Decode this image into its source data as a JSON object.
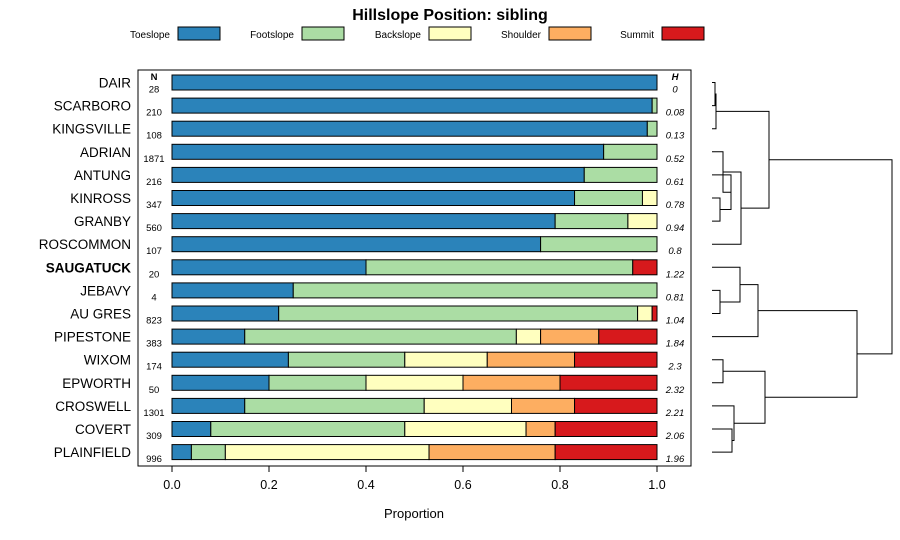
{
  "chart_data": {
    "type": "bar",
    "stacked": true,
    "orientation": "horizontal",
    "title": "Hillslope Position: sibling",
    "xlabel": "Proportion",
    "xlim": [
      0,
      1
    ],
    "xticks": [
      "0.0",
      "0.2",
      "0.4",
      "0.6",
      "0.8",
      "1.0"
    ],
    "legend_position": "top",
    "n_header": "N",
    "h_header": "H",
    "categories": [
      "DAIR",
      "SCARBORO",
      "KINGSVILLE",
      "ADRIAN",
      "ANTUNG",
      "KINROSS",
      "GRANBY",
      "ROSCOMMON",
      "SAUGATUCK",
      "JEBAVY",
      "AU GRES",
      "PIPESTONE",
      "WIXOM",
      "EPWORTH",
      "CROSWELL",
      "COVERT",
      "PLAINFIELD"
    ],
    "highlight": "SAUGATUCK",
    "n": [
      "28",
      "210",
      "108",
      "1871",
      "216",
      "347",
      "560",
      "107",
      "20",
      "4",
      "823",
      "383",
      "174",
      "50",
      "1301",
      "309",
      "996"
    ],
    "h": [
      "0",
      "0.08",
      "0.13",
      "0.52",
      "0.61",
      "0.78",
      "0.94",
      "0.8",
      "1.22",
      "0.81",
      "1.04",
      "1.84",
      "2.3",
      "2.32",
      "2.21",
      "2.06",
      "1.96"
    ],
    "series": [
      {
        "name": "Toeslope",
        "color": "#2b83ba",
        "values": [
          1.0,
          0.99,
          0.98,
          0.89,
          0.85,
          0.83,
          0.79,
          0.76,
          0.4,
          0.25,
          0.22,
          0.15,
          0.24,
          0.2,
          0.15,
          0.08,
          0.04
        ]
      },
      {
        "name": "Footslope",
        "color": "#abdda4",
        "values": [
          0.0,
          0.01,
          0.02,
          0.11,
          0.15,
          0.14,
          0.15,
          0.24,
          0.55,
          0.75,
          0.74,
          0.56,
          0.24,
          0.2,
          0.37,
          0.4,
          0.07
        ]
      },
      {
        "name": "Backslope",
        "color": "#ffffbf",
        "values": [
          0.0,
          0.0,
          0.0,
          0.0,
          0.0,
          0.03,
          0.06,
          0.0,
          0.0,
          0.0,
          0.03,
          0.05,
          0.17,
          0.2,
          0.18,
          0.25,
          0.42
        ]
      },
      {
        "name": "Shoulder",
        "color": "#fdae61",
        "values": [
          0.0,
          0.0,
          0.0,
          0.0,
          0.0,
          0.0,
          0.0,
          0.0,
          0.0,
          0.0,
          0.0,
          0.12,
          0.18,
          0.2,
          0.13,
          0.06,
          0.26
        ]
      },
      {
        "name": "Summit",
        "color": "#d7191c",
        "values": [
          0.0,
          0.0,
          0.0,
          0.0,
          0.0,
          0.0,
          0.0,
          0.0,
          0.05,
          0.0,
          0.01,
          0.12,
          0.17,
          0.2,
          0.17,
          0.21,
          0.21
        ]
      }
    ]
  }
}
